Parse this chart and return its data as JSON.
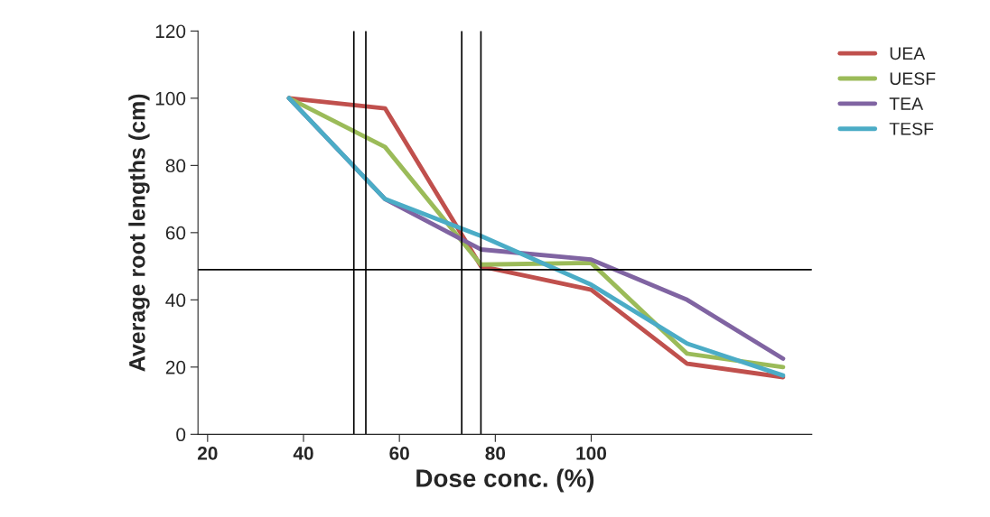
{
  "chart_data": {
    "type": "line",
    "xlabel": "Dose conc. (%)",
    "ylabel": "Average root lengths (cm)",
    "x": [
      37,
      57,
      77,
      100,
      120,
      140
    ],
    "series": [
      {
        "name": "UEA",
        "color": "#c0504d",
        "values": [
          100,
          97,
          50,
          43,
          21,
          17
        ]
      },
      {
        "name": "UESF",
        "color": "#9bbb59",
        "values": [
          100,
          85.5,
          50.5,
          51,
          24,
          20
        ]
      },
      {
        "name": "TEA",
        "color": "#8064a2",
        "values": [
          100,
          70,
          55,
          52,
          40,
          22.5
        ]
      },
      {
        "name": "TESF",
        "color": "#4bacc6",
        "values": [
          100,
          70,
          59,
          44.5,
          27,
          17.5
        ]
      }
    ],
    "xlim": [
      18,
      146
    ],
    "xticks": [
      20,
      40,
      60,
      80,
      100
    ],
    "ylim": [
      0,
      120
    ],
    "yticks": [
      0,
      20,
      40,
      60,
      80,
      100,
      120
    ],
    "ref_lines": [
      {
        "axis": "y",
        "value": 49,
        "color": "#000000"
      },
      {
        "axis": "x",
        "value": 50.5,
        "color": "#000000"
      },
      {
        "axis": "x",
        "value": 53,
        "color": "#000000"
      },
      {
        "axis": "x",
        "value": 73,
        "color": "#000000"
      },
      {
        "axis": "x",
        "value": 77,
        "color": "#000000"
      }
    ],
    "grid": false,
    "legend": "top right",
    "marker": "none",
    "line_style": "solid"
  }
}
